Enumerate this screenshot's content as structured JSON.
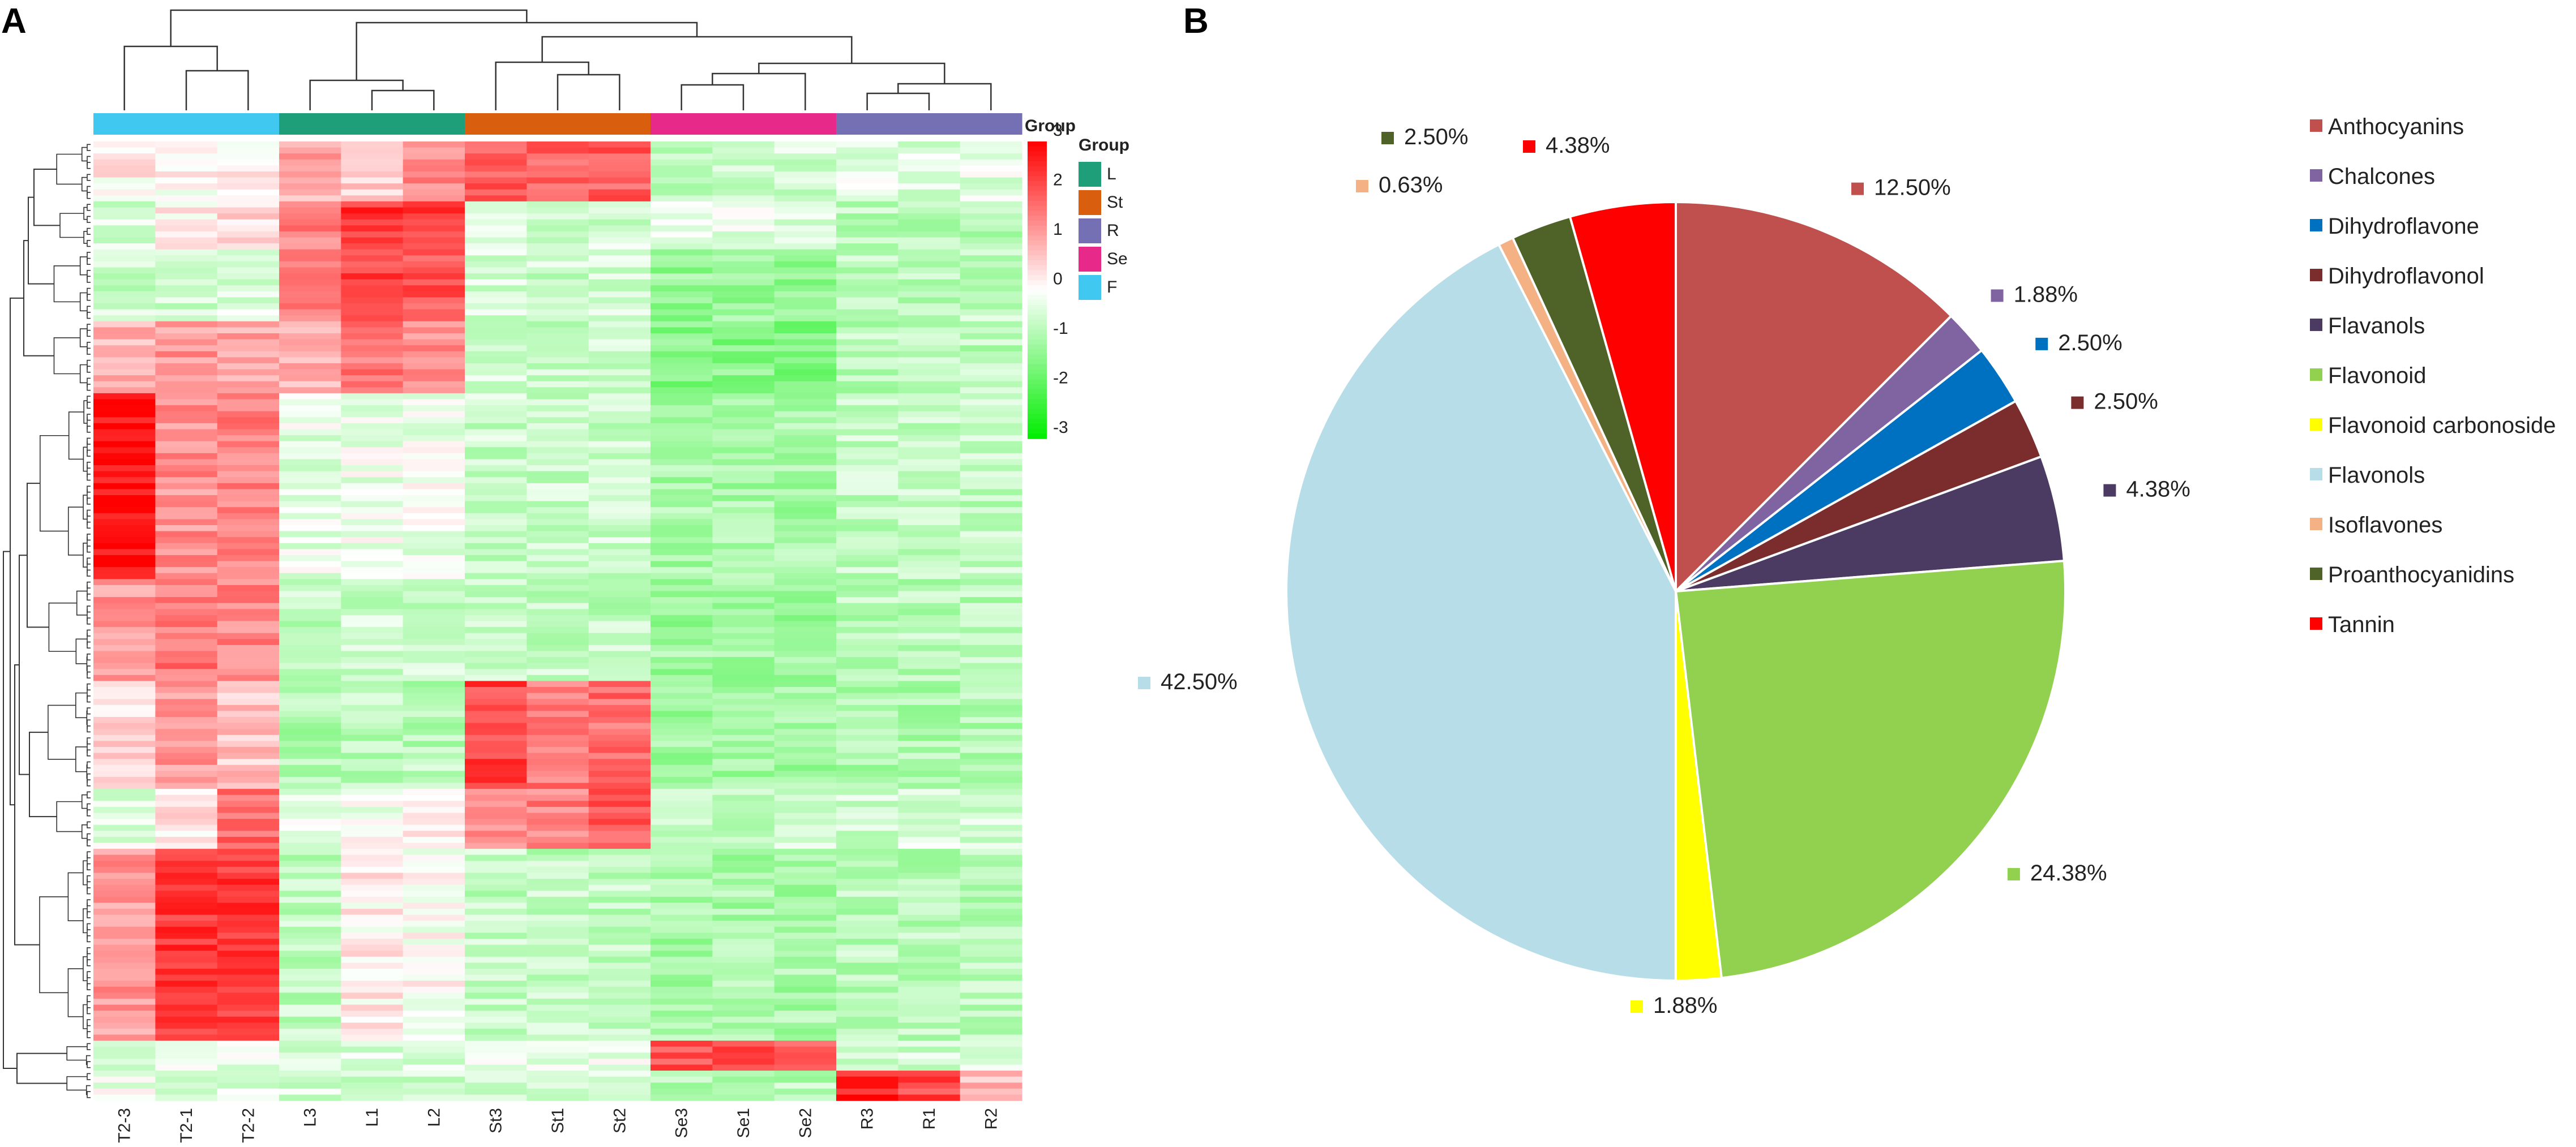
{
  "chart_data": [
    {
      "panel": "A",
      "type": "heatmap",
      "columns": [
        "T2-3",
        "T2-1",
        "T2-2",
        "L3",
        "L1",
        "L2",
        "St3",
        "St1",
        "St2",
        "Se3",
        "Se1",
        "Se2",
        "R3",
        "R1",
        "R2"
      ],
      "column_groups": [
        "F",
        "F",
        "F",
        "L",
        "L",
        "L",
        "St",
        "St",
        "St",
        "Se",
        "Se",
        "Se",
        "R",
        "R",
        "R"
      ],
      "row_count": 160,
      "groups_title": "Group",
      "legend_title": "Group",
      "groups": [
        {
          "name": "L",
          "color": "#1f9e7a"
        },
        {
          "name": "St",
          "color": "#d95f0e"
        },
        {
          "name": "R",
          "color": "#7570b3"
        },
        {
          "name": "Se",
          "color": "#e7298a"
        },
        {
          "name": "F",
          "color": "#41c8f0"
        }
      ],
      "colorbar": {
        "min": -3,
        "max": 3,
        "ticks": [
          "3",
          "2",
          "1",
          "0",
          "-1",
          "-2",
          "-3"
        ],
        "high_color": "#ff0000",
        "mid_color": "#ffffff",
        "low_color": "#00ee00"
      },
      "clusters": [
        {
          "rows": [
            0,
            10
          ],
          "values": [
            0.2,
            0.1,
            0.2,
            1.0,
            0.6,
            1.3,
            2.0,
            1.8,
            1.9,
            -0.7,
            -0.5,
            -0.5,
            -0.3,
            -0.4,
            -0.3
          ]
        },
        {
          "rows": [
            10,
            18
          ],
          "values": [
            -0.5,
            0.2,
            0.4,
            1.5,
            2.4,
            2.3,
            -0.4,
            -0.6,
            -0.5,
            -0.4,
            -0.3,
            -0.3,
            -0.8,
            -0.9,
            -0.8
          ]
        },
        {
          "rows": [
            18,
            30
          ],
          "values": [
            -0.6,
            -0.5,
            -0.4,
            1.6,
            2.2,
            2.0,
            -0.5,
            -0.6,
            -0.5,
            -1.2,
            -1.2,
            -1.2,
            -0.7,
            -0.8,
            -0.7
          ]
        },
        {
          "rows": [
            30,
            42
          ],
          "values": [
            0.8,
            1.2,
            1.1,
            0.9,
            1.6,
            1.4,
            -0.5,
            -0.6,
            -0.6,
            -1.4,
            -1.4,
            -1.4,
            -0.8,
            -0.8,
            -0.8
          ]
        },
        {
          "rows": [
            42,
            73
          ],
          "values": [
            2.8,
            1.3,
            1.5,
            -0.3,
            -0.2,
            -0.2,
            -0.6,
            -0.6,
            -0.6,
            -1.0,
            -1.0,
            -1.0,
            -0.7,
            -0.7,
            -0.7
          ]
        },
        {
          "rows": [
            73,
            90
          ],
          "values": [
            1.2,
            1.6,
            1.4,
            -0.7,
            -0.6,
            -0.6,
            -0.7,
            -0.7,
            -0.7,
            -1.1,
            -1.1,
            -1.1,
            -0.8,
            -0.8,
            -0.8
          ]
        },
        {
          "rows": [
            90,
            108
          ],
          "values": [
            0.4,
            1.2,
            0.7,
            -0.9,
            -0.8,
            -0.8,
            2.2,
            1.6,
            1.7,
            -1.1,
            -1.1,
            -1.1,
            -0.9,
            -0.9,
            -0.9
          ]
        },
        {
          "rows": [
            108,
            118
          ],
          "values": [
            -0.3,
            0.3,
            1.7,
            -0.2,
            -0.1,
            0.1,
            1.5,
            1.5,
            2.0,
            -0.6,
            -0.6,
            -0.6,
            -0.6,
            -0.4,
            -0.5
          ]
        },
        {
          "rows": [
            118,
            150
          ],
          "values": [
            1.2,
            2.3,
            2.3,
            -0.7,
            0.2,
            0.0,
            -0.7,
            -0.7,
            -0.7,
            -1.0,
            -1.0,
            -1.0,
            -0.8,
            -0.8,
            -0.8
          ]
        },
        {
          "rows": [
            150,
            155
          ],
          "values": [
            -0.4,
            -0.3,
            -0.3,
            -0.4,
            -0.4,
            -0.4,
            -0.2,
            -0.3,
            -0.2,
            2.0,
            2.1,
            2.0,
            -0.5,
            -0.5,
            -0.5
          ]
        },
        {
          "rows": [
            155,
            160
          ],
          "values": [
            -0.2,
            -0.5,
            -0.4,
            -0.5,
            -0.6,
            -0.5,
            -0.6,
            -0.6,
            -0.6,
            -0.8,
            -0.8,
            -0.8,
            2.6,
            2.2,
            0.8
          ]
        }
      ]
    },
    {
      "panel": "B",
      "type": "pie",
      "categories": [
        "Anthocyanins",
        "Chalcones",
        "Dihydroflavone",
        "Dihydroflavonol",
        "Flavanols",
        "Flavonoid",
        "Flavonoid carbonoside",
        "Flavonols",
        "Isoflavones",
        "Proanthocyanidins",
        "Tannin"
      ],
      "values": [
        12.5,
        1.88,
        2.5,
        2.5,
        4.38,
        24.38,
        1.88,
        42.5,
        0.63,
        2.5,
        4.38
      ],
      "labels": [
        "12.50%",
        "1.88%",
        "2.50%",
        "2.50%",
        "4.38%",
        "24.38%",
        "1.88%",
        "42.50%",
        "0.63%",
        "2.50%",
        "4.38%"
      ],
      "colors": [
        "#c0504d",
        "#8064a2",
        "#0070c0",
        "#7b2c2c",
        "#4b3b62",
        "#92d050",
        "#ffff00",
        "#b7dde8",
        "#f4b183",
        "#4f6228",
        "#ff0000"
      ],
      "start_angle_deg": 0,
      "direction": "clockwise",
      "legend_position": "right"
    }
  ],
  "panels": {
    "a_label": "A",
    "b_label": "B"
  }
}
